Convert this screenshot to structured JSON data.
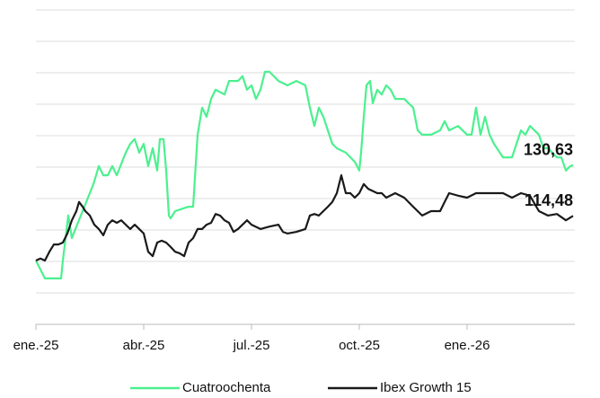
{
  "chart_data": {
    "type": "line",
    "xlim": [
      0,
      15
    ],
    "xticks": [
      {
        "value": 0,
        "label": "ene.-25"
      },
      {
        "value": 3,
        "label": "abr.-25"
      },
      {
        "value": 6,
        "label": "jul.-25"
      },
      {
        "value": 9,
        "label": "oct.-25"
      },
      {
        "value": 12,
        "label": "ene.-26"
      }
    ],
    "ylim": [
      80,
      180
    ],
    "yticks": [
      80,
      90,
      100,
      110,
      120,
      130,
      140,
      150,
      160,
      170,
      180
    ],
    "grid": true,
    "legend": "bottom",
    "series": [
      {
        "name": "Cuatroochenta",
        "color": "#4cf08f",
        "end_label": "130,63",
        "x": [
          0,
          0.1,
          0.25,
          0.7,
          0.75,
          0.9,
          1,
          1.1,
          1.25,
          1.5,
          1.6,
          1.75,
          1.875,
          2,
          2.125,
          2.25,
          2.5,
          2.625,
          2.75,
          2.875,
          3,
          3.125,
          3.25,
          3.375,
          3.45,
          3.55,
          3.625,
          3.7,
          3.75,
          3.875,
          4.25,
          4.375,
          4.5,
          4.625,
          4.75,
          4.875,
          5,
          5.25,
          5.375,
          5.625,
          5.75,
          5.875,
          6,
          6.125,
          6.25,
          6.375,
          6.5,
          6.75,
          7,
          7.25,
          7.5,
          7.625,
          7.75,
          7.875,
          8,
          8.125,
          8.25,
          8.375,
          8.625,
          8.875,
          9,
          9.05,
          9.125,
          9.2,
          9.3,
          9.375,
          9.5,
          9.625,
          9.75,
          9.875,
          10,
          10.25,
          10.5,
          10.625,
          10.75,
          11,
          11.25,
          11.375,
          11.5,
          11.75,
          12,
          12.125,
          12.25,
          12.375,
          12.5,
          12.625,
          12.75,
          13,
          13.25,
          13.375,
          13.5,
          13.625,
          13.75,
          14,
          14.125,
          14.25,
          14.5,
          14.625,
          14.75,
          14.875,
          14.95
        ],
        "values": [
          100.3,
          98,
          94.6,
          94.6,
          100.3,
          114.6,
          107.4,
          110.3,
          114.6,
          121.7,
          124.6,
          130.3,
          127.4,
          127.4,
          130.3,
          127.4,
          134.6,
          137.4,
          138.9,
          134.6,
          137.4,
          130.3,
          136,
          128.9,
          138.9,
          138.9,
          128.9,
          114.6,
          113.7,
          116,
          117.4,
          117.4,
          140.3,
          148.9,
          146,
          151.7,
          154.6,
          153.1,
          157.4,
          157.4,
          158.9,
          154.6,
          156,
          151.7,
          154.6,
          160.3,
          160.3,
          157.4,
          156,
          157.4,
          156,
          148.9,
          143.1,
          148.9,
          146,
          141.7,
          137.4,
          136,
          134.6,
          131.7,
          128.9,
          134.6,
          146,
          156,
          157.4,
          150.3,
          154.6,
          153.1,
          156,
          154.6,
          151.7,
          151.7,
          148.9,
          141.7,
          140.3,
          140.3,
          141.7,
          144.6,
          141.7,
          143.1,
          140.3,
          140.3,
          148.9,
          140.3,
          146,
          140.3,
          137.4,
          133.1,
          133.1,
          137.4,
          141.7,
          140.3,
          143.1,
          140.3,
          136,
          136,
          133.1,
          133.1,
          128.9,
          130.3,
          130.63
        ]
      },
      {
        "name": "Ibex Growth 15",
        "color": "#1a1a1a",
        "end_label": "114,48",
        "x": [
          0,
          0.125,
          0.25,
          0.375,
          0.5,
          0.625,
          0.75,
          0.875,
          1,
          1.125,
          1.2,
          1.3,
          1.375,
          1.5,
          1.625,
          1.75,
          1.875,
          2,
          2.125,
          2.25,
          2.375,
          2.5,
          2.625,
          2.75,
          2.875,
          3,
          3.125,
          3.25,
          3.375,
          3.5,
          3.625,
          3.75,
          3.875,
          4,
          4.125,
          4.25,
          4.375,
          4.5,
          4.625,
          4.75,
          4.875,
          5,
          5.125,
          5.25,
          5.375,
          5.5,
          5.625,
          5.75,
          5.875,
          6,
          6.25,
          6.5,
          6.75,
          6.875,
          7,
          7.25,
          7.5,
          7.625,
          7.75,
          7.875,
          8,
          8.125,
          8.25,
          8.375,
          8.5,
          8.625,
          8.75,
          8.875,
          9,
          9.125,
          9.25,
          9.5,
          9.625,
          9.75,
          10,
          10.25,
          10.5,
          10.75,
          11,
          11.25,
          11.375,
          11.5,
          11.75,
          12,
          12.25,
          12.5,
          12.75,
          13,
          13.25,
          13.5,
          13.75,
          14,
          14.25,
          14.5,
          14.75,
          14.95
        ],
        "values": [
          100.3,
          100.9,
          100.3,
          103.1,
          105.4,
          105.4,
          106,
          108.9,
          113.1,
          116,
          118.9,
          117.4,
          116,
          114.6,
          111.7,
          110.3,
          108.3,
          111.7,
          113.1,
          112.3,
          113.1,
          111.7,
          110.3,
          111.7,
          110.3,
          108.9,
          103.1,
          101.7,
          106,
          106.6,
          106,
          104.6,
          103.1,
          102.6,
          101.7,
          106,
          107.4,
          110.3,
          110.3,
          111.7,
          112.3,
          115.1,
          114.6,
          113.1,
          112.3,
          109.4,
          110.3,
          111.7,
          113.1,
          111.7,
          110.3,
          111.1,
          111.7,
          109.4,
          108.9,
          109.4,
          110.3,
          114.6,
          115.1,
          114.6,
          116,
          117.4,
          118.9,
          121.7,
          127.4,
          121.7,
          121.7,
          120.3,
          121.7,
          124.6,
          123.1,
          121.7,
          121.7,
          120.3,
          121.7,
          120.3,
          117.4,
          114.6,
          116,
          116,
          118.9,
          121.7,
          120.9,
          120.3,
          121.7,
          121.7,
          121.7,
          121.7,
          120.3,
          121.7,
          120.9,
          116,
          114.6,
          115.1,
          113.1,
          114.48
        ]
      }
    ]
  }
}
